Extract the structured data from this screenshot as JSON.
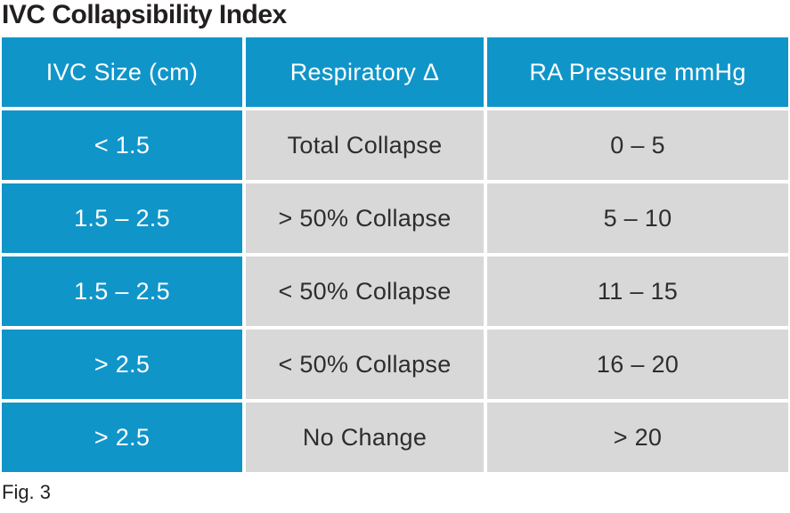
{
  "title": "IVC Collapsibility Index",
  "caption": "Fig. 3",
  "colors": {
    "header_bg": "#1095c9",
    "row_label_bg": "#1095c9",
    "data_cell_bg": "#d8d8d8",
    "header_text": "#ffffff",
    "data_text": "#2d2d2d",
    "title_text": "#231f20",
    "gutter": "#ffffff"
  },
  "chart_data": {
    "type": "table",
    "title": "IVC Collapsibility Index",
    "columns": [
      "IVC Size (cm)",
      "Respiratory Δ",
      "RA Pressure mmHg"
    ],
    "rows": [
      [
        "< 1.5",
        "Total Collapse",
        "0 – 5"
      ],
      [
        "1.5 – 2.5",
        "> 50% Collapse",
        "5 – 10"
      ],
      [
        "1.5 – 2.5",
        "< 50% Collapse",
        "11 – 15"
      ],
      [
        "> 2.5",
        "< 50% Collapse",
        "16 – 20"
      ],
      [
        "> 2.5",
        "No Change",
        "> 20"
      ]
    ],
    "layout": {
      "header_style": "blue-filled",
      "first_column_style": "blue-filled",
      "grid": "white gutters between all cells",
      "caption": "Fig. 3"
    }
  }
}
